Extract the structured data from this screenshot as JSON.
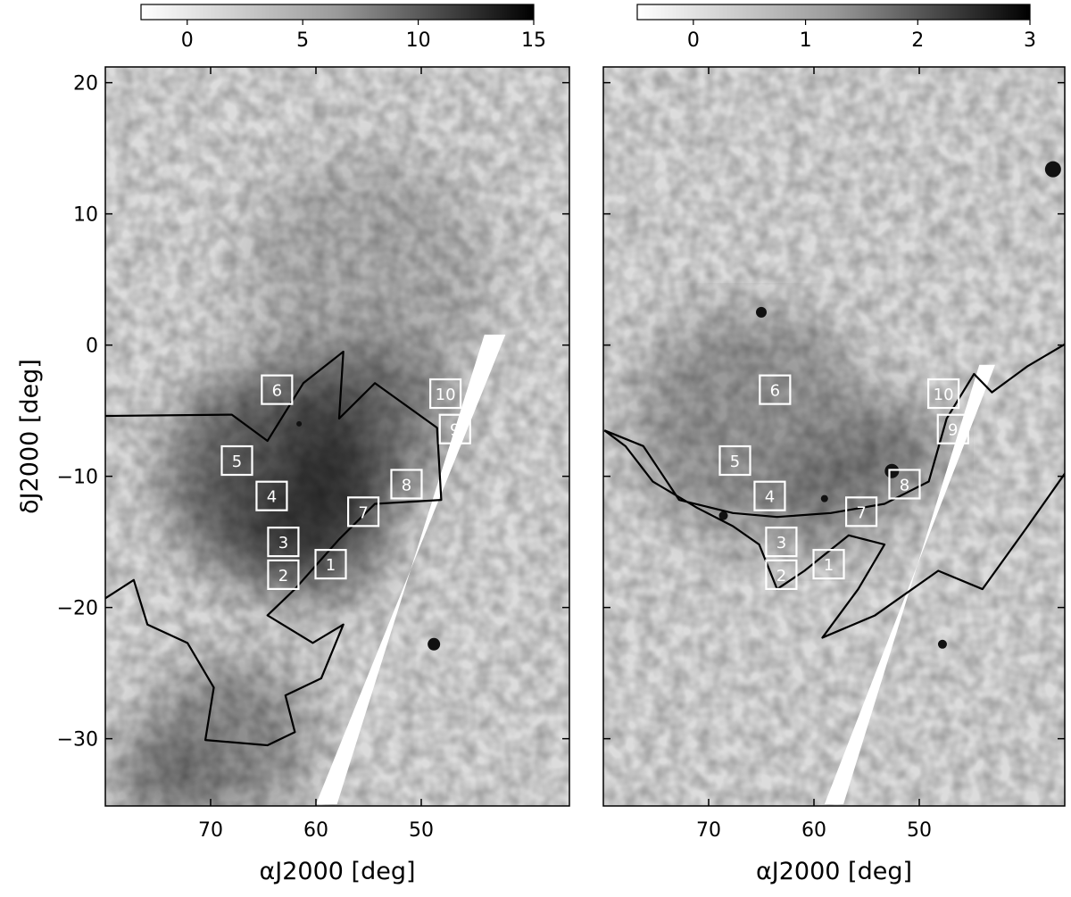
{
  "chart_data": [
    {
      "type": "heatmap",
      "xlabel": "αJ2000 [deg]",
      "ylabel": "δJ2000 [deg]",
      "xlim": [
        80,
        36
      ],
      "ylim": [
        -35,
        21.2
      ],
      "xticks": [
        70,
        60,
        50
      ],
      "yticks": [
        20,
        10,
        0,
        -10,
        -20,
        -30
      ],
      "colormap": "gray_r",
      "colorbar": {
        "range": [
          -2,
          15
        ],
        "ticks": [
          0,
          5,
          10,
          15
        ],
        "placement": "top"
      },
      "regions": [
        {
          "label": "1",
          "ra": 58.6,
          "dec": -16.7
        },
        {
          "label": "2",
          "ra": 63.1,
          "dec": -17.5
        },
        {
          "label": "3",
          "ra": 63.1,
          "dec": -15.0
        },
        {
          "label": "4",
          "ra": 64.2,
          "dec": -11.5
        },
        {
          "label": "5",
          "ra": 67.5,
          "dec": -8.8
        },
        {
          "label": "6",
          "ra": 63.7,
          "dec": -3.4
        },
        {
          "label": "7",
          "ra": 55.5,
          "dec": -12.7
        },
        {
          "label": "8",
          "ra": 51.4,
          "dec": -10.6
        },
        {
          "label": "9",
          "ra": 46.8,
          "dec": -6.4
        },
        {
          "label": "10",
          "ra": 47.7,
          "dec": -3.7
        }
      ],
      "contour": [
        [
          80.0,
          -5.4
        ],
        [
          68.0,
          -5.3
        ],
        [
          64.6,
          -7.3
        ],
        [
          61.2,
          -2.9
        ],
        [
          57.4,
          -0.5
        ],
        [
          57.8,
          -5.6
        ],
        [
          54.4,
          -2.9
        ],
        [
          48.5,
          -6.3
        ],
        [
          48.1,
          -11.8
        ],
        [
          54.4,
          -12.1
        ],
        [
          57.8,
          -14.8
        ],
        [
          62.0,
          -18.6
        ],
        [
          64.6,
          -20.6
        ],
        [
          60.3,
          -22.7
        ],
        [
          57.4,
          -21.3
        ],
        [
          59.5,
          -25.4
        ],
        [
          62.9,
          -26.7
        ],
        [
          62.0,
          -29.5
        ],
        [
          64.6,
          -30.5
        ],
        [
          70.5,
          -30.1
        ],
        [
          69.7,
          -26.1
        ],
        [
          72.2,
          -22.7
        ],
        [
          76.0,
          -21.3
        ],
        [
          77.3,
          -17.9
        ],
        [
          80.0,
          -19.3
        ]
      ]
    },
    {
      "type": "heatmap",
      "xlabel": "αJ2000 [deg]",
      "ylabel": "",
      "xlim": [
        80,
        36
      ],
      "ylim": [
        -35,
        21.2
      ],
      "xticks": [
        70,
        60,
        50
      ],
      "yticks": [
        20,
        10,
        0,
        -10,
        -20,
        -30
      ],
      "colormap": "gray_r",
      "colorbar": {
        "range": [
          -0.5,
          3
        ],
        "ticks": [
          0,
          1,
          2,
          3
        ],
        "placement": "top"
      },
      "regions": [
        {
          "label": "1",
          "ra": 58.6,
          "dec": -16.7
        },
        {
          "label": "2",
          "ra": 63.1,
          "dec": -17.5
        },
        {
          "label": "3",
          "ra": 63.1,
          "dec": -15.0
        },
        {
          "label": "4",
          "ra": 64.2,
          "dec": -11.5
        },
        {
          "label": "5",
          "ra": 67.5,
          "dec": -8.8
        },
        {
          "label": "6",
          "ra": 63.7,
          "dec": -3.4
        },
        {
          "label": "7",
          "ra": 55.5,
          "dec": -12.7
        },
        {
          "label": "8",
          "ra": 51.4,
          "dec": -10.6
        },
        {
          "label": "9",
          "ra": 46.8,
          "dec": -6.4
        },
        {
          "label": "10",
          "ra": 47.7,
          "dec": -3.7
        }
      ],
      "contour": [
        [
          79.9,
          -6.5
        ],
        [
          76.2,
          -7.7
        ],
        [
          72.8,
          -11.8
        ],
        [
          67.7,
          -12.8
        ],
        [
          63.5,
          -13.1
        ],
        [
          58.4,
          -12.8
        ],
        [
          53.3,
          -12.1
        ],
        [
          49.1,
          -10.4
        ],
        [
          47.4,
          -5.6
        ],
        [
          44.8,
          -2.2
        ],
        [
          43.1,
          -3.6
        ],
        [
          39.7,
          -1.6
        ],
        [
          36.1,
          0.1
        ],
        [
          36.1,
          -9.7
        ],
        [
          39.7,
          -13.8
        ],
        [
          44.0,
          -18.6
        ],
        [
          48.2,
          -17.2
        ],
        [
          54.2,
          -20.6
        ],
        [
          59.2,
          -22.3
        ],
        [
          55.8,
          -18.6
        ],
        [
          53.3,
          -15.2
        ],
        [
          56.7,
          -14.5
        ],
        [
          60.9,
          -17.2
        ],
        [
          63.5,
          -18.6
        ],
        [
          65.2,
          -15.2
        ],
        [
          67.7,
          -13.8
        ],
        [
          71.1,
          -12.4
        ],
        [
          75.3,
          -10.4
        ],
        [
          77.9,
          -7.7
        ],
        [
          79.9,
          -6.5
        ]
      ]
    }
  ]
}
